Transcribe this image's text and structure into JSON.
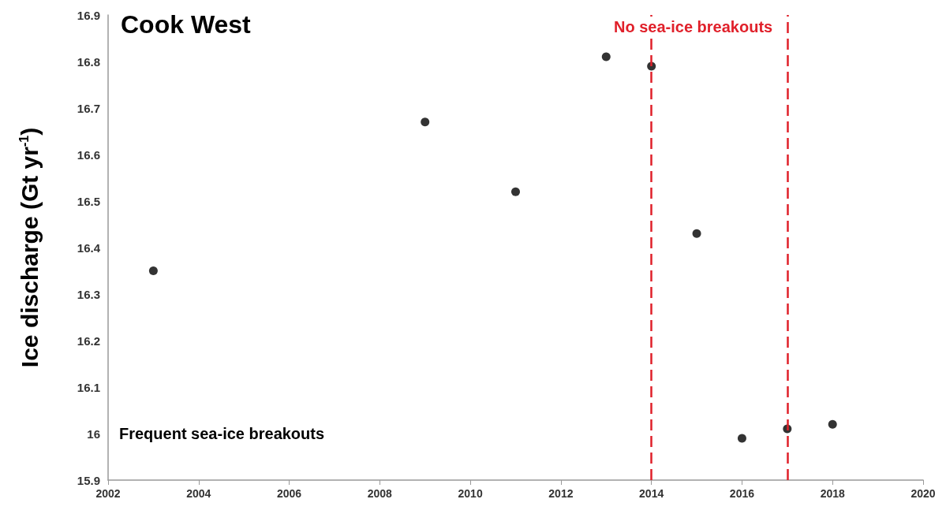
{
  "chart_data": {
    "type": "scatter",
    "title": "Cook West",
    "ylabel": "Ice discharge (Gt yr$^{-1}$)",
    "x": [
      2003,
      2009,
      2011,
      2013,
      2014,
      2015,
      2016,
      2017,
      2018
    ],
    "values": [
      16.35,
      16.67,
      16.52,
      16.81,
      16.79,
      16.43,
      15.99,
      16.01,
      16.02
    ],
    "color": "#000000",
    "marker": "circle",
    "xlim": [
      2002,
      2020
    ],
    "xticks": [
      2002,
      2004,
      2006,
      2008,
      2010,
      2012,
      2014,
      2016,
      2018,
      2020
    ],
    "ylim": [
      15.9,
      16.9
    ],
    "yticks": [
      15.9,
      16,
      16.1,
      16.2,
      16.3,
      16.4,
      16.5,
      16.6,
      16.7,
      16.8,
      16.9
    ],
    "grid": false,
    "ref_lines": [
      {
        "axis": "x",
        "value": 2014,
        "color": "#e0202a",
        "line_style": "dashed"
      },
      {
        "axis": "x",
        "value": 2017,
        "color": "#e0202a",
        "line_style": "dashed"
      }
    ],
    "annotations": [
      "No sea-ice breakouts",
      "Frequent sea-ice breakouts"
    ]
  }
}
